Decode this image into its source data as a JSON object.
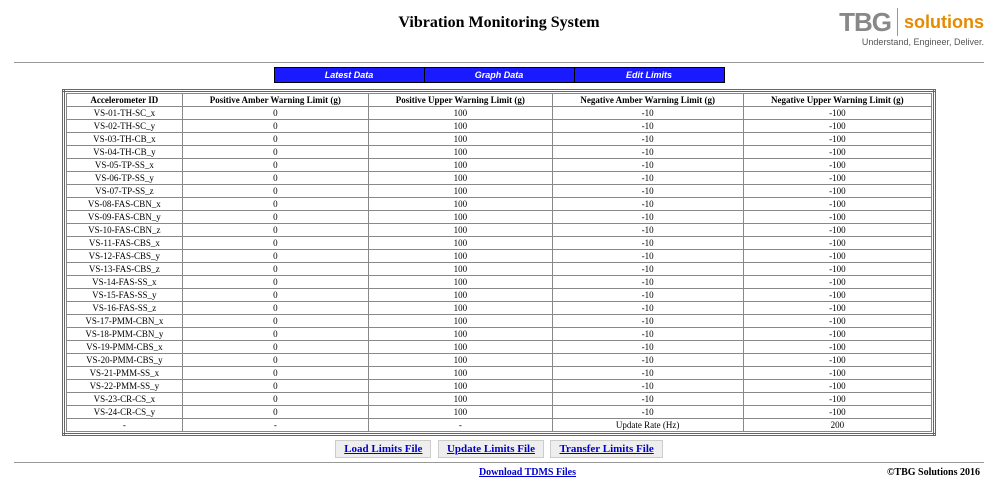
{
  "header": {
    "title": "Vibration Monitoring System",
    "logo_tbg": "TBG",
    "logo_solutions": "solutions",
    "logo_tagline": "Understand, Engineer, Deliver."
  },
  "nav": {
    "items": [
      "Latest Data",
      "Graph Data",
      "Edit Limits"
    ]
  },
  "table": {
    "columns": [
      "Accelerometer ID",
      "Positive Amber Warning Limit (g)",
      "Positive Upper Warning Limit (g)",
      "Negative Amber Warning Limit (g)",
      "Negative Upper Warning Limit (g)"
    ],
    "rows": [
      [
        "VS-01-TH-SC_x",
        "0",
        "100",
        "-10",
        "-100"
      ],
      [
        "VS-02-TH-SC_y",
        "0",
        "100",
        "-10",
        "-100"
      ],
      [
        "VS-03-TH-CB_x",
        "0",
        "100",
        "-10",
        "-100"
      ],
      [
        "VS-04-TH-CB_y",
        "0",
        "100",
        "-10",
        "-100"
      ],
      [
        "VS-05-TP-SS_x",
        "0",
        "100",
        "-10",
        "-100"
      ],
      [
        "VS-06-TP-SS_y",
        "0",
        "100",
        "-10",
        "-100"
      ],
      [
        "VS-07-TP-SS_z",
        "0",
        "100",
        "-10",
        "-100"
      ],
      [
        "VS-08-FAS-CBN_x",
        "0",
        "100",
        "-10",
        "-100"
      ],
      [
        "VS-09-FAS-CBN_y",
        "0",
        "100",
        "-10",
        "-100"
      ],
      [
        "VS-10-FAS-CBN_z",
        "0",
        "100",
        "-10",
        "-100"
      ],
      [
        "VS-11-FAS-CBS_x",
        "0",
        "100",
        "-10",
        "-100"
      ],
      [
        "VS-12-FAS-CBS_y",
        "0",
        "100",
        "-10",
        "-100"
      ],
      [
        "VS-13-FAS-CBS_z",
        "0",
        "100",
        "-10",
        "-100"
      ],
      [
        "VS-14-FAS-SS_x",
        "0",
        "100",
        "-10",
        "-100"
      ],
      [
        "VS-15-FAS-SS_y",
        "0",
        "100",
        "-10",
        "-100"
      ],
      [
        "VS-16-FAS-SS_z",
        "0",
        "100",
        "-10",
        "-100"
      ],
      [
        "VS-17-PMM-CBN_x",
        "0",
        "100",
        "-10",
        "-100"
      ],
      [
        "VS-18-PMM-CBN_y",
        "0",
        "100",
        "-10",
        "-100"
      ],
      [
        "VS-19-PMM-CBS_x",
        "0",
        "100",
        "-10",
        "-100"
      ],
      [
        "VS-20-PMM-CBS_y",
        "0",
        "100",
        "-10",
        "-100"
      ],
      [
        "VS-21-PMM-SS_x",
        "0",
        "100",
        "-10",
        "-100"
      ],
      [
        "VS-22-PMM-SS_y",
        "0",
        "100",
        "-10",
        "-100"
      ],
      [
        "VS-23-CR-CS_x",
        "0",
        "100",
        "-10",
        "-100"
      ],
      [
        "VS-24-CR-CS_y",
        "0",
        "100",
        "-10",
        "-100"
      ]
    ],
    "footer": [
      "-",
      "-",
      "-",
      "Update Rate (Hz)",
      "200"
    ]
  },
  "buttons": {
    "load": "Load Limits File",
    "update": "Update Limits File",
    "transfer": "Transfer Limits File"
  },
  "bottom": {
    "download": "Download TDMS Files",
    "copyright": "©TBG Solutions 2016"
  },
  "style": {
    "nav_bg": "#1a1aff",
    "nav_text": "#ffffff",
    "link_color": "#0000cc",
    "logo_accent": "#e68a00",
    "logo_gray": "#888888"
  }
}
